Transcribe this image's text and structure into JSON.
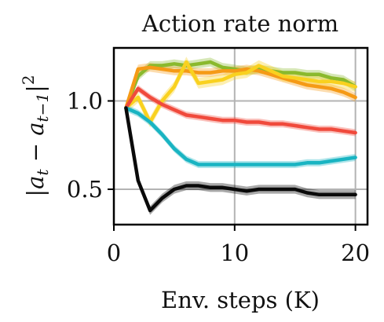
{
  "chart_data": {
    "type": "line",
    "title": "Action rate norm",
    "xlabel": "Env. steps (K)",
    "ylabel": "|a_t − a_t−1|²",
    "ylabel_parts": {
      "pipe_open": "|",
      "a1": "a",
      "sub1": "t",
      "minus": " − ",
      "a2": "a",
      "sub2": "t−1",
      "pipe_close": "|",
      "sup": "2"
    },
    "xlim": [
      0,
      21
    ],
    "ylim": [
      0.3,
      1.3
    ],
    "xticks": [
      0,
      10,
      20
    ],
    "xtick_labels": [
      "0",
      "10",
      "20"
    ],
    "yticks": [
      0.5,
      1.0
    ],
    "ytick_labels": [
      "0.5",
      "1.0"
    ],
    "grid": true,
    "series": [
      {
        "color": "#8ab92d",
        "band": 0.025,
        "x": [
          1,
          2,
          3,
          4,
          5,
          6,
          7,
          8,
          9,
          10,
          11,
          12,
          13,
          14,
          15,
          16,
          17,
          18,
          19,
          20
        ],
        "y": [
          0.96,
          1.14,
          1.2,
          1.2,
          1.21,
          1.2,
          1.21,
          1.22,
          1.19,
          1.18,
          1.17,
          1.18,
          1.17,
          1.16,
          1.16,
          1.15,
          1.15,
          1.13,
          1.12,
          1.08
        ]
      },
      {
        "color": "#f59a16",
        "band": 0.025,
        "x": [
          1,
          2,
          3,
          4,
          5,
          6,
          7,
          8,
          9,
          10,
          11,
          12,
          13,
          14,
          15,
          16,
          17,
          18,
          19,
          20
        ],
        "y": [
          0.96,
          1.18,
          1.19,
          1.18,
          1.17,
          1.17,
          1.16,
          1.16,
          1.17,
          1.17,
          1.18,
          1.17,
          1.15,
          1.13,
          1.11,
          1.09,
          1.08,
          1.07,
          1.05,
          1.02
        ]
      },
      {
        "color": "#f9d11f",
        "band": 0.03,
        "x": [
          1,
          2,
          3,
          4,
          5,
          6,
          7,
          8,
          9,
          10,
          11,
          12,
          13,
          14,
          15,
          16,
          17,
          18,
          19,
          20
        ],
        "y": [
          0.96,
          1.02,
          0.88,
          1.0,
          1.08,
          1.22,
          1.1,
          1.11,
          1.12,
          1.15,
          1.16,
          1.2,
          1.17,
          1.14,
          1.13,
          1.12,
          1.11,
          1.11,
          1.1,
          1.08
        ]
      },
      {
        "color": "#f04a3c",
        "band": 0.02,
        "x": [
          1,
          2,
          3,
          4,
          5,
          6,
          7,
          8,
          9,
          10,
          11,
          12,
          13,
          14,
          15,
          16,
          17,
          18,
          19,
          20
        ],
        "y": [
          0.96,
          1.07,
          1.02,
          0.98,
          0.95,
          0.92,
          0.91,
          0.9,
          0.89,
          0.89,
          0.88,
          0.88,
          0.87,
          0.87,
          0.86,
          0.85,
          0.84,
          0.84,
          0.83,
          0.82
        ]
      },
      {
        "color": "#19b4c2",
        "band": 0.02,
        "x": [
          1,
          2,
          3,
          4,
          5,
          6,
          7,
          8,
          9,
          10,
          11,
          12,
          13,
          14,
          15,
          16,
          17,
          18,
          19,
          20
        ],
        "y": [
          0.96,
          0.93,
          0.88,
          0.81,
          0.73,
          0.67,
          0.64,
          0.64,
          0.64,
          0.64,
          0.64,
          0.64,
          0.64,
          0.64,
          0.64,
          0.65,
          0.65,
          0.66,
          0.67,
          0.68
        ]
      },
      {
        "color": "#0a0a0a",
        "band": 0.025,
        "x": [
          1,
          2,
          3,
          4,
          5,
          6,
          7,
          8,
          9,
          10,
          11,
          12,
          13,
          14,
          15,
          16,
          17,
          18,
          19,
          20
        ],
        "y": [
          0.96,
          0.55,
          0.38,
          0.45,
          0.5,
          0.52,
          0.52,
          0.51,
          0.51,
          0.5,
          0.49,
          0.5,
          0.5,
          0.5,
          0.5,
          0.48,
          0.47,
          0.47,
          0.47,
          0.47
        ]
      }
    ]
  }
}
